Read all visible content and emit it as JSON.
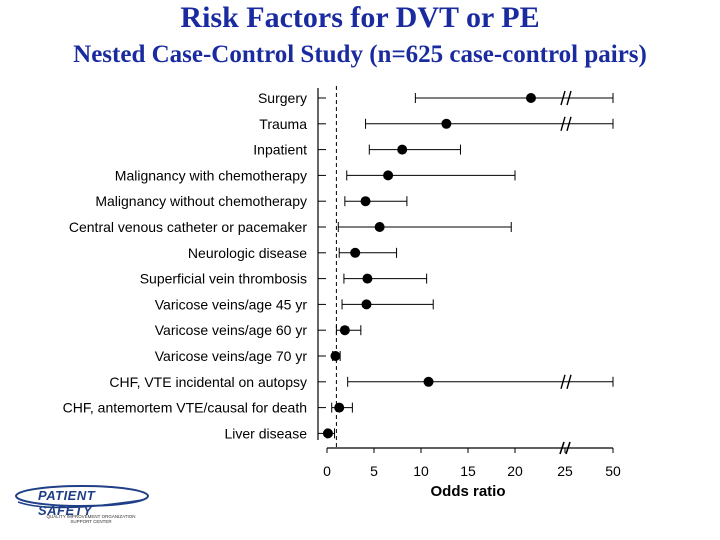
{
  "header": {
    "title": "Risk Factors for DVT or PE",
    "subtitle": "Nested Case-Control Study (n=625 case-control pairs)"
  },
  "chart_data": {
    "type": "forest",
    "title": "Risk Factors for DVT or PE",
    "subtitle": "Nested Case-Control Study (n=625 case-control pairs)",
    "xlabel": "Odds ratio",
    "x_ticks": [
      "0",
      "5",
      "10",
      "15",
      "20",
      "25",
      "50"
    ],
    "x_axis_break": "between 20 and 50 (25 tick shown with break mark)",
    "reference_line": 1,
    "rows": [
      {
        "label": "Surgery",
        "or": 21.7,
        "low": 9.4,
        "high": 50,
        "high_truncated": true
      },
      {
        "label": "Trauma",
        "or": 12.7,
        "low": 4.1,
        "high": 50,
        "high_truncated": true
      },
      {
        "label": "Inpatient",
        "or": 8.0,
        "low": 4.5,
        "high": 14.2
      },
      {
        "label": "Malignancy with chemotherapy",
        "or": 6.5,
        "low": 2.1,
        "high": 20.0
      },
      {
        "label": "Malignancy without chemotherapy",
        "or": 4.1,
        "low": 1.9,
        "high": 8.5
      },
      {
        "label": "Central venous catheter or pacemaker",
        "or": 5.6,
        "low": 1.2,
        "high": 19.6
      },
      {
        "label": "Neurologic disease",
        "or": 3.0,
        "low": 1.3,
        "high": 7.4
      },
      {
        "label": "Superficial vein thrombosis",
        "or": 4.3,
        "low": 1.8,
        "high": 10.6
      },
      {
        "label": "Varicose veins/age 45 yr",
        "or": 4.2,
        "low": 1.6,
        "high": 11.3
      },
      {
        "label": "Varicose veins/age 60 yr",
        "or": 1.9,
        "low": 1.0,
        "high": 3.6
      },
      {
        "label": "Varicose veins/age 70 yr",
        "or": 0.9,
        "low": 0.6,
        "high": 1.4
      },
      {
        "label": "CHF, VTE incidental on autopsy",
        "or": 10.8,
        "low": 2.2,
        "high": 50,
        "high_truncated": true
      },
      {
        "label": "CHF, antemortem VTE/causal for death",
        "or": 1.3,
        "low": 0.5,
        "high": 2.7
      },
      {
        "label": "Liver disease",
        "or": 0.1,
        "low": 0.0,
        "high": 0.8
      }
    ]
  },
  "logo": {
    "name": "PATIENT SAFETY",
    "tagline": "QUALITY IMPROVEMENT ORGANIZATION SUPPORT CENTER"
  }
}
